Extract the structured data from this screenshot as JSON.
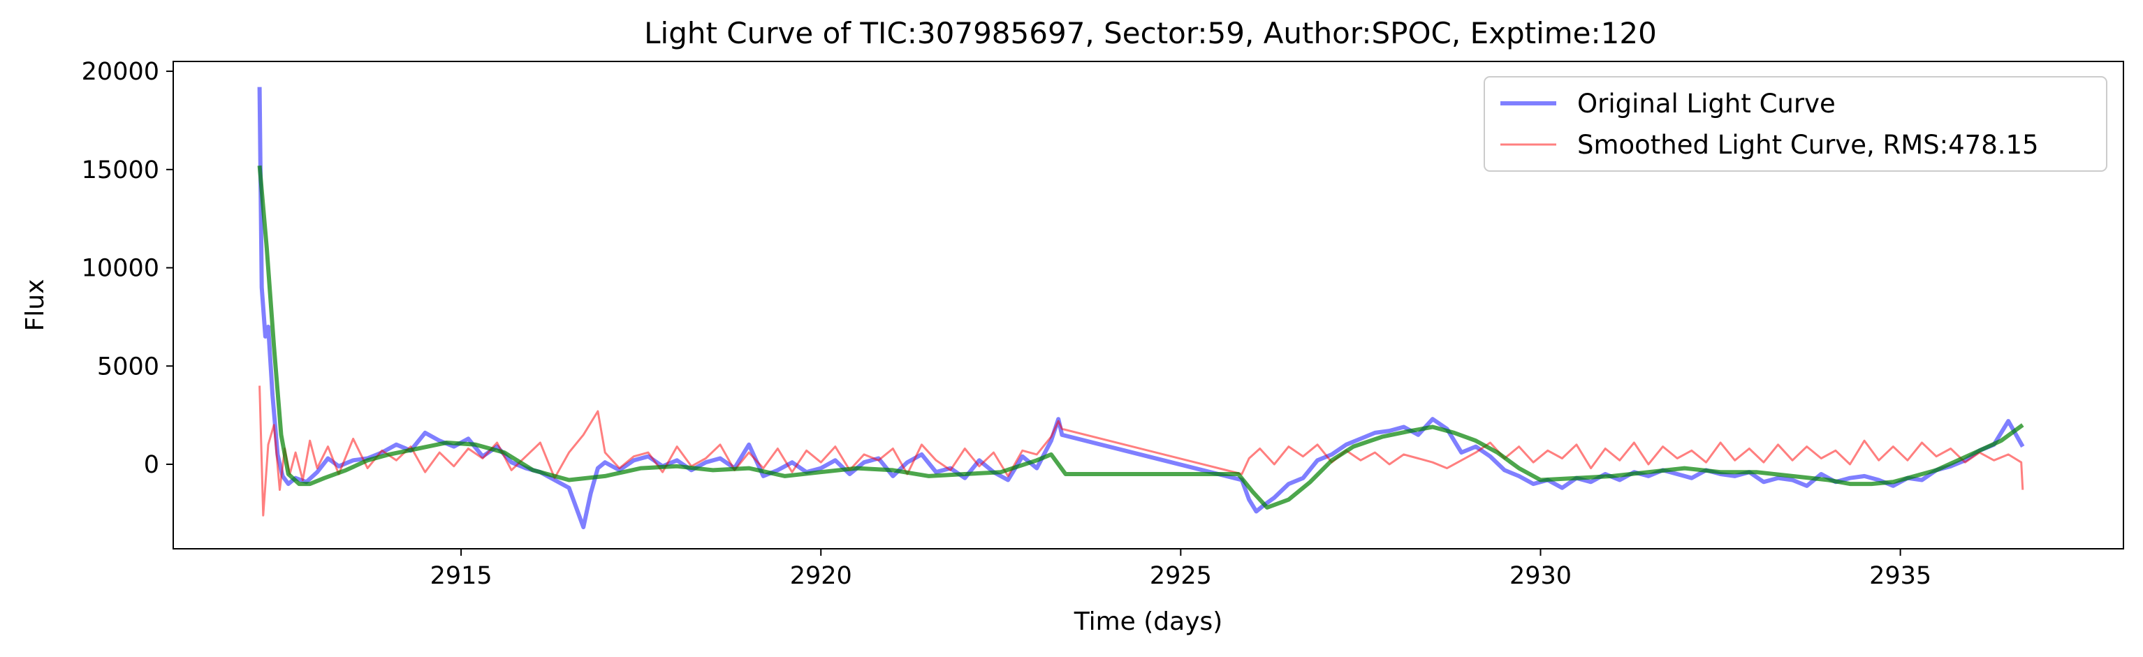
{
  "chart_data": {
    "type": "line",
    "title": "Light Curve of TIC:307985697, Sector:59, Author:SPOC, Exptime:120",
    "xlabel": "Time (days)",
    "ylabel": "Flux",
    "xlim": [
      2911.0,
      2938.1
    ],
    "ylim": [
      -4300,
      20500
    ],
    "xticks": [
      2915,
      2920,
      2925,
      2930,
      2935
    ],
    "xtick_labels": [
      "2915",
      "2920",
      "2925",
      "2930",
      "2935"
    ],
    "yticks": [
      0,
      5000,
      10000,
      15000,
      20000
    ],
    "ytick_labels": [
      "0",
      "5000",
      "10000",
      "15000",
      "20000"
    ],
    "grid": false,
    "legend": {
      "position": "top-right"
    },
    "series": [
      {
        "name": "Original Light Curve",
        "color": "#0000ff",
        "opacity": 0.5,
        "x": [
          2912.2,
          2912.23,
          2912.28,
          2912.32,
          2912.38,
          2912.45,
          2912.52,
          2912.6,
          2912.7,
          2912.85,
          2913.0,
          2913.15,
          2913.3,
          2913.5,
          2913.7,
          2913.9,
          2914.1,
          2914.3,
          2914.5,
          2914.7,
          2914.9,
          2915.1,
          2915.3,
          2915.5,
          2915.7,
          2915.9,
          2916.1,
          2916.3,
          2916.5,
          2916.7,
          2916.8,
          2916.9,
          2917.0,
          2917.2,
          2917.4,
          2917.6,
          2917.8,
          2918.0,
          2918.2,
          2918.4,
          2918.6,
          2918.8,
          2919.0,
          2919.2,
          2919.4,
          2919.6,
          2919.8,
          2920.0,
          2920.2,
          2920.4,
          2920.6,
          2920.8,
          2921.0,
          2921.2,
          2921.4,
          2921.6,
          2921.8,
          2922.0,
          2922.2,
          2922.4,
          2922.6,
          2922.8,
          2923.0,
          2923.2,
          2923.3,
          2923.35,
          2925.85,
          2925.95,
          2926.05,
          2926.15,
          2926.3,
          2926.5,
          2926.7,
          2926.9,
          2927.1,
          2927.3,
          2927.5,
          2927.7,
          2927.9,
          2928.1,
          2928.3,
          2928.5,
          2928.7,
          2928.9,
          2929.1,
          2929.3,
          2929.5,
          2929.7,
          2929.9,
          2930.1,
          2930.3,
          2930.5,
          2930.7,
          2930.9,
          2931.1,
          2931.3,
          2931.5,
          2931.7,
          2931.9,
          2932.1,
          2932.3,
          2932.5,
          2932.7,
          2932.9,
          2933.1,
          2933.3,
          2933.5,
          2933.7,
          2933.9,
          2934.1,
          2934.3,
          2934.5,
          2934.7,
          2934.9,
          2935.1,
          2935.3,
          2935.5,
          2935.7,
          2935.9,
          2936.1,
          2936.3,
          2936.5,
          2936.7
        ],
        "y": [
          19200,
          9000,
          6500,
          7000,
          3500,
          500,
          -600,
          -1000,
          -700,
          -900,
          -400,
          300,
          -100,
          200,
          300,
          600,
          1000,
          700,
          1600,
          1200,
          900,
          1300,
          400,
          900,
          100,
          -200,
          -400,
          -800,
          -1200,
          -3200,
          -1500,
          -200,
          100,
          -300,
          200,
          400,
          -100,
          200,
          -300,
          100,
          300,
          -200,
          1000,
          -600,
          -300,
          100,
          -400,
          -200,
          200,
          -500,
          100,
          300,
          -600,
          100,
          500,
          -400,
          -200,
          -700,
          200,
          -400,
          -800,
          400,
          -200,
          1200,
          2300,
          1500,
          -800,
          -1800,
          -2400,
          -2100,
          -1700,
          -1000,
          -700,
          200,
          500,
          1000,
          1300,
          1600,
          1700,
          1900,
          1500,
          2300,
          1800,
          600,
          900,
          400,
          -300,
          -600,
          -1000,
          -800,
          -1200,
          -700,
          -900,
          -500,
          -800,
          -400,
          -600,
          -300,
          -500,
          -700,
          -300,
          -500,
          -600,
          -400,
          -900,
          -700,
          -800,
          -1100,
          -500,
          -900,
          -700,
          -600,
          -800,
          -1100,
          -700,
          -800,
          -300,
          -100,
          200,
          700,
          1000,
          2200,
          900
        ]
      },
      {
        "name": "Smoothed Light Curve, RMS:478.15",
        "color": "#ff0000",
        "opacity": 0.5,
        "x": [
          2912.2,
          2912.25,
          2912.32,
          2912.4,
          2912.48,
          2912.55,
          2912.62,
          2912.7,
          2912.8,
          2912.9,
          2913.0,
          2913.15,
          2913.3,
          2913.5,
          2913.7,
          2913.9,
          2914.1,
          2914.3,
          2914.5,
          2914.7,
          2914.9,
          2915.1,
          2915.3,
          2915.5,
          2915.7,
          2915.9,
          2916.1,
          2916.3,
          2916.5,
          2916.7,
          2916.9,
          2917.0,
          2917.2,
          2917.4,
          2917.6,
          2917.8,
          2918.0,
          2918.2,
          2918.4,
          2918.6,
          2918.8,
          2919.0,
          2919.2,
          2919.4,
          2919.6,
          2919.8,
          2920.0,
          2920.2,
          2920.4,
          2920.6,
          2920.8,
          2921.0,
          2921.2,
          2921.4,
          2921.6,
          2921.8,
          2922.0,
          2922.2,
          2922.4,
          2922.6,
          2922.8,
          2923.0,
          2923.2,
          2923.3,
          2923.35,
          2925.85,
          2925.95,
          2926.1,
          2926.3,
          2926.5,
          2926.7,
          2926.9,
          2927.1,
          2927.3,
          2927.5,
          2927.7,
          2927.9,
          2928.1,
          2928.3,
          2928.5,
          2928.7,
          2928.9,
          2929.1,
          2929.3,
          2929.5,
          2929.7,
          2929.9,
          2930.1,
          2930.3,
          2930.5,
          2930.7,
          2930.9,
          2931.1,
          2931.3,
          2931.5,
          2931.7,
          2931.9,
          2932.1,
          2932.3,
          2932.5,
          2932.7,
          2932.9,
          2933.1,
          2933.3,
          2933.5,
          2933.7,
          2933.9,
          2934.1,
          2934.3,
          2934.5,
          2934.7,
          2934.9,
          2935.1,
          2935.3,
          2935.5,
          2935.7,
          2935.9,
          2936.1,
          2936.3,
          2936.5,
          2936.68,
          2936.7
        ],
        "y": [
          4000,
          -2600,
          1000,
          2000,
          -1300,
          800,
          -500,
          600,
          -800,
          1200,
          -200,
          900,
          -500,
          1300,
          -200,
          700,
          200,
          900,
          -400,
          600,
          -100,
          800,
          300,
          1100,
          -300,
          400,
          1100,
          -700,
          600,
          1500,
          2700,
          600,
          -200,
          400,
          600,
          -400,
          900,
          -100,
          300,
          1000,
          -300,
          600,
          -200,
          800,
          -400,
          700,
          100,
          900,
          -300,
          500,
          200,
          800,
          -500,
          1000,
          200,
          -300,
          800,
          -100,
          600,
          -600,
          700,
          500,
          1400,
          2200,
          1800,
          -500,
          300,
          800,
          0,
          900,
          400,
          1000,
          100,
          700,
          200,
          600,
          0,
          500,
          300,
          100,
          -200,
          200,
          600,
          1100,
          300,
          900,
          100,
          700,
          300,
          1000,
          -200,
          800,
          200,
          1100,
          0,
          900,
          300,
          700,
          100,
          1100,
          200,
          800,
          100,
          1000,
          200,
          900,
          300,
          700,
          0,
          1200,
          200,
          900,
          200,
          1100,
          400,
          800,
          100,
          600,
          200,
          500,
          100,
          -1300
        ]
      },
      {
        "name": "",
        "color": "#008000",
        "opacity": 0.7,
        "x": [
          2912.2,
          2912.3,
          2912.4,
          2912.5,
          2912.6,
          2912.75,
          2912.9,
          2913.1,
          2913.4,
          2913.7,
          2914.0,
          2914.4,
          2914.8,
          2915.2,
          2915.6,
          2916.0,
          2916.5,
          2917.0,
          2917.5,
          2918.0,
          2918.5,
          2919.0,
          2919.5,
          2920.0,
          2920.5,
          2921.0,
          2921.5,
          2922.0,
          2922.5,
          2923.0,
          2923.2,
          2923.4,
          2925.8,
          2926.0,
          2926.2,
          2926.5,
          2926.8,
          2927.1,
          2927.4,
          2927.8,
          2928.2,
          2928.5,
          2928.8,
          2929.1,
          2929.4,
          2929.7,
          2930.0,
          2930.5,
          2931.0,
          2931.5,
          2932.0,
          2932.5,
          2933.0,
          2933.5,
          2934.0,
          2934.3,
          2934.6,
          2934.9,
          2935.2,
          2935.5,
          2935.8,
          2936.1,
          2936.4,
          2936.7
        ],
        "y": [
          15200,
          11000,
          6000,
          1500,
          -500,
          -1000,
          -1000,
          -700,
          -300,
          200,
          500,
          800,
          1100,
          1000,
          600,
          -300,
          -800,
          -600,
          -200,
          -100,
          -300,
          -200,
          -600,
          -400,
          -200,
          -300,
          -600,
          -500,
          -400,
          200,
          500,
          -500,
          -500,
          -1400,
          -2200,
          -1800,
          -900,
          200,
          900,
          1400,
          1700,
          1900,
          1600,
          1200,
          600,
          -200,
          -800,
          -700,
          -600,
          -400,
          -200,
          -400,
          -400,
          -600,
          -800,
          -1000,
          -1000,
          -900,
          -600,
          -300,
          200,
          700,
          1200,
          2000
        ]
      }
    ]
  }
}
